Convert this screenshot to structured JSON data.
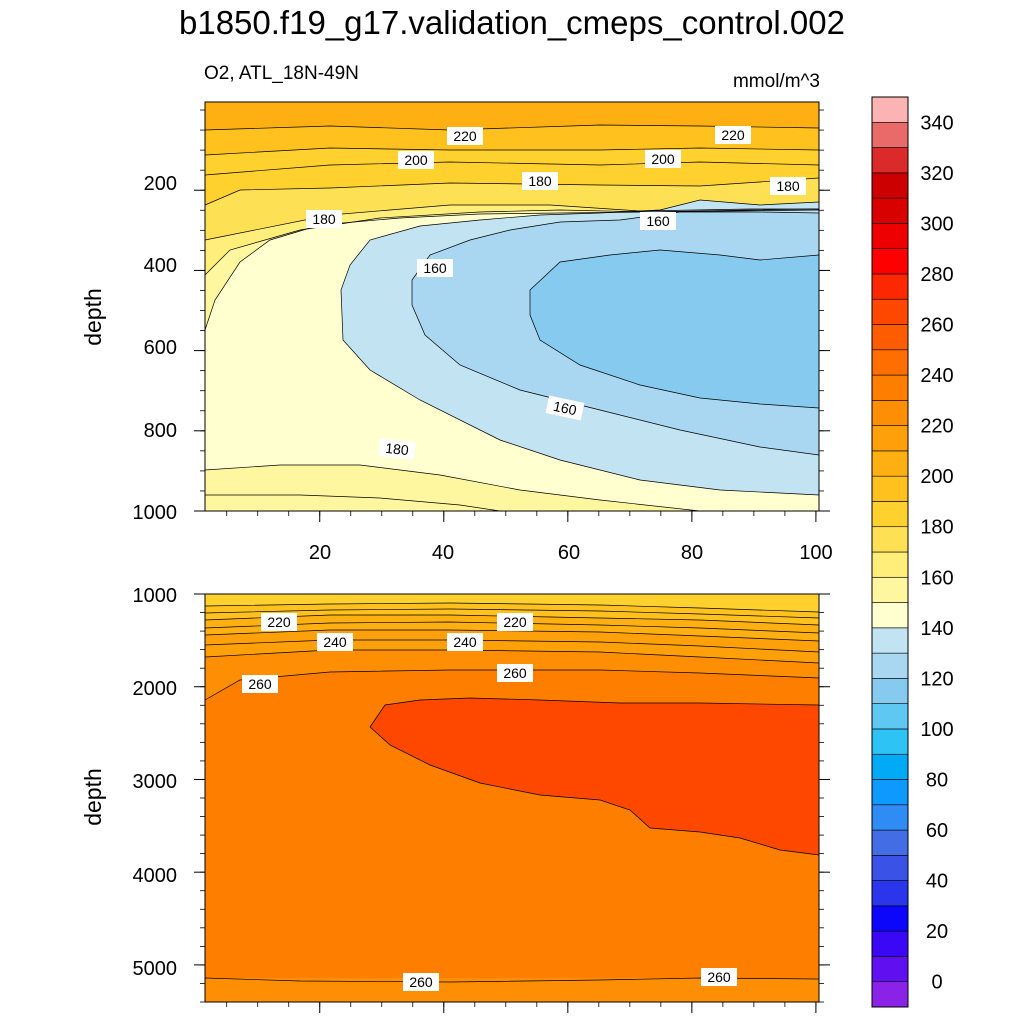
{
  "title": "b1850.f19_g17.validation_cmeps_control.002",
  "chart_data": {
    "type": "contour",
    "variable_label": "O2, ATL_18N-49N",
    "units": "mmol/m^3",
    "colorbar": {
      "min": -10,
      "max": 360,
      "step": 10,
      "tick_labels": [
        "0",
        "20",
        "40",
        "60",
        "80",
        "100",
        "120",
        "140",
        "160",
        "180",
        "200",
        "220",
        "240",
        "260",
        "280",
        "300",
        "320",
        "340"
      ],
      "colors": [
        "#8B22E8",
        "#6010F0",
        "#3A08F4",
        "#0C06FA",
        "#2A35EC",
        "#3A52E6",
        "#436DE4",
        "#2F8CF4",
        "#0D99FF",
        "#00AAF4",
        "#2EC3F5",
        "#5EC8F2",
        "#86CBEF",
        "#A9D6F0",
        "#C2E3F2",
        "#FFFFD0",
        "#FFF7A0",
        "#FFEE7A",
        "#FEE054",
        "#FFD12E",
        "#FEC11E",
        "#FEB012",
        "#FEA00A",
        "#FE8E04",
        "#FE7E00",
        "#FE6E00",
        "#FE5C00",
        "#FE4800",
        "#FE2800",
        "#FF0000",
        "#EE0000",
        "#D90000",
        "#CC0000",
        "#DA2A2A",
        "#EA6A6A",
        "#FCB3B3"
      ]
    },
    "panels": [
      {
        "name": "upper",
        "xlim": [
          0,
          100
        ],
        "x_ticks": [
          "20",
          "40",
          "60",
          "80",
          "100"
        ],
        "ylabel": "depth",
        "ylim": [
          0,
          1000
        ],
        "y_ticks": [
          "200",
          "400",
          "600",
          "800",
          "1000"
        ],
        "contour_labels": [
          "220",
          "220",
          "200",
          "200",
          "180",
          "180",
          "180",
          "160",
          "160",
          "160",
          "180"
        ]
      },
      {
        "name": "lower",
        "xlim": [
          0,
          100
        ],
        "x_ticks": [],
        "ylabel": "depth",
        "ylim": [
          1000,
          5400
        ],
        "y_ticks": [
          "1000",
          "2000",
          "3000",
          "4000",
          "5000"
        ],
        "contour_labels": [
          "220",
          "220",
          "240",
          "240",
          "260",
          "260",
          "260",
          "260"
        ]
      }
    ]
  }
}
